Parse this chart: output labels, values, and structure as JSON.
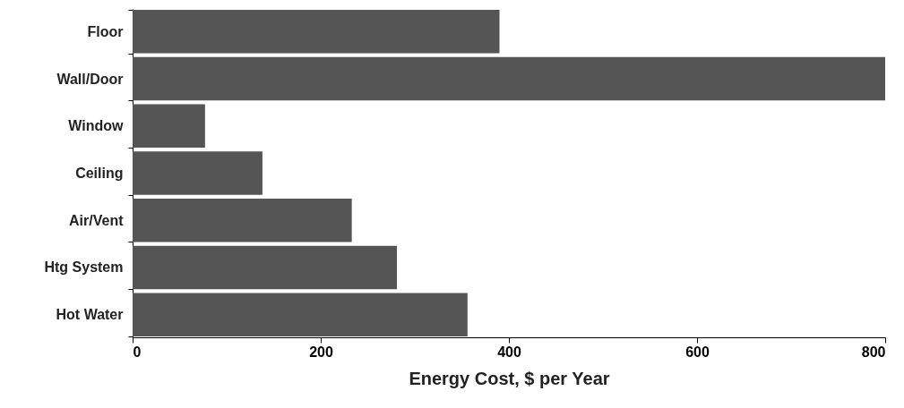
{
  "chart_data": {
    "type": "bar",
    "orientation": "horizontal",
    "xlabel": "Energy Cost, $ per Year",
    "categories": [
      "Floor",
      "Wall/Door",
      "Window",
      "Ceiling",
      "Air/Vent",
      "Htg System",
      "Hot Water"
    ],
    "values": [
      390,
      800,
      77,
      138,
      233,
      281,
      356
    ],
    "color": "#555555",
    "xlim": [
      0,
      800
    ],
    "xticks": [
      0,
      200,
      400,
      600,
      800
    ],
    "grid": false
  }
}
